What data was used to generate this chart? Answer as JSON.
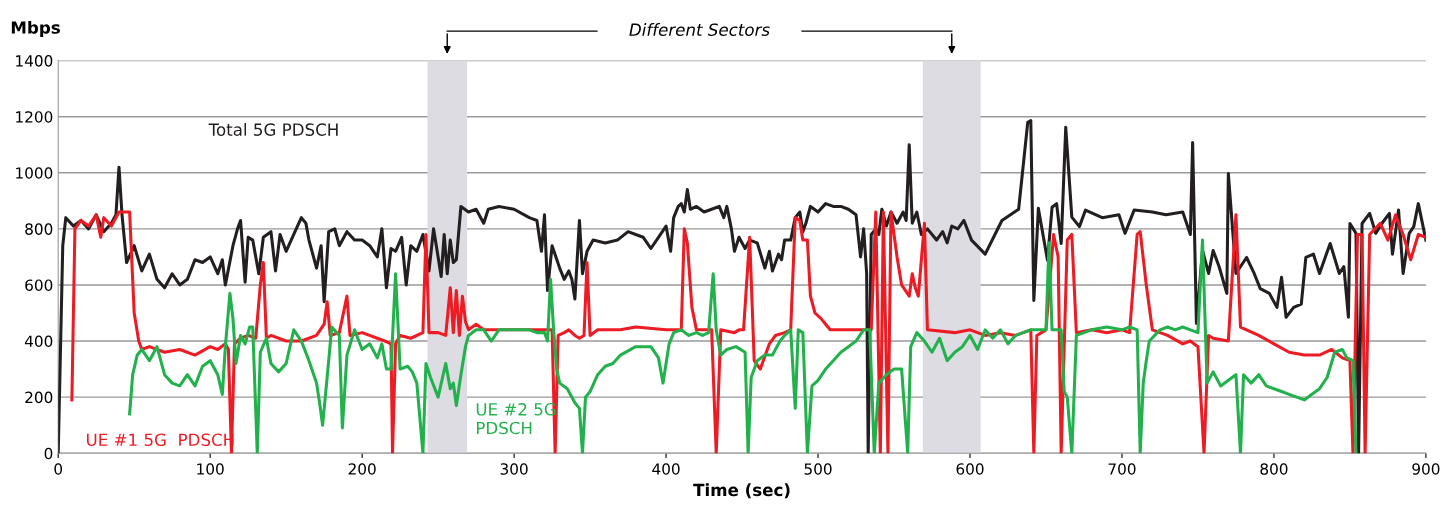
{
  "chart_data": {
    "type": "line",
    "xlabel": "Time (sec)",
    "ylabel": "Mbps",
    "xlim": [
      0,
      900
    ],
    "ylim": [
      0,
      1400
    ],
    "xticks": [
      0,
      100,
      200,
      300,
      400,
      500,
      600,
      700,
      800,
      900
    ],
    "yticks": [
      0,
      200,
      400,
      600,
      800,
      1000,
      1200,
      1400
    ],
    "grid": "y",
    "legend": false,
    "marker": "none",
    "line_style": "solid",
    "annotations": [
      "Different Sectors"
    ],
    "bands": [
      {
        "axis": "x",
        "from": 243,
        "to": 269,
        "color": "#dcdce2"
      },
      {
        "axis": "x",
        "from": 569,
        "to": 607,
        "color": "#dcdce2"
      }
    ],
    "series": [
      {
        "name": "Total 5G PDSCH",
        "color": "#231f20",
        "x": [
          0,
          3,
          5,
          10,
          15,
          20,
          25,
          30,
          35,
          38,
          40,
          42,
          45,
          50,
          55,
          60,
          65,
          70,
          75,
          80,
          85,
          90,
          95,
          100,
          105,
          108,
          110,
          115,
          118,
          120,
          123,
          125,
          128,
          132,
          135,
          140,
          143,
          146,
          150,
          155,
          160,
          163,
          165,
          170,
          173,
          175,
          178,
          182,
          185,
          190,
          195,
          200,
          205,
          210,
          213,
          216,
          219,
          222,
          226,
          229,
          232,
          236,
          240,
          244,
          247,
          250,
          252,
          254,
          256,
          258,
          260,
          262,
          265,
          270,
          275,
          280,
          283,
          290,
          300,
          310,
          315,
          318,
          320,
          322,
          325,
          330,
          333,
          336,
          338,
          340,
          343,
          345,
          348,
          352,
          360,
          368,
          375,
          380,
          385,
          390,
          395,
          400,
          403,
          405,
          408,
          410,
          412,
          414,
          416,
          420,
          425,
          430,
          435,
          438,
          440,
          443,
          445,
          448,
          452,
          455,
          460,
          465,
          468,
          470,
          472,
          474,
          476,
          478,
          482,
          485,
          488,
          490,
          492,
          495,
          500,
          505,
          510,
          515,
          520,
          525,
          528,
          530,
          532,
          533,
          535,
          538,
          540,
          542,
          545,
          548,
          552,
          556,
          558,
          560,
          562,
          565,
          568,
          572,
          578,
          582,
          585,
          588,
          592,
          596,
          601,
          610,
          621,
          632,
          638,
          640,
          642,
          645,
          651,
          654,
          657,
          660,
          663,
          667,
          672,
          676,
          687,
          698,
          702,
          708,
          720,
          729,
          740,
          745,
          746.5,
          749,
          753,
          757,
          760,
          764,
          769,
          770,
          775,
          782,
          787,
          791,
          797,
          802,
          805,
          808,
          813,
          818,
          821,
          826,
          830,
          837,
          843,
          846,
          849,
          850,
          854,
          855.7,
          858,
          863,
          867,
          871,
          876,
          878,
          882,
          885,
          889,
          892,
          895,
          900
        ],
        "values": [
          0,
          740,
          840,
          810,
          830,
          800,
          850,
          790,
          820,
          850,
          1020,
          850,
          680,
          740,
          650,
          710,
          620,
          590,
          640,
          600,
          620,
          690,
          680,
          700,
          640,
          690,
          600,
          740,
          800,
          830,
          610,
          770,
          760,
          640,
          770,
          790,
          650,
          780,
          720,
          780,
          840,
          820,
          760,
          660,
          740,
          540,
          790,
          800,
          740,
          790,
          760,
          760,
          740,
          700,
          800,
          590,
          730,
          720,
          770,
          600,
          740,
          720,
          780,
          650,
          800,
          700,
          630,
          780,
          640,
          760,
          680,
          690,
          880,
          860,
          870,
          820,
          870,
          880,
          870,
          840,
          830,
          720,
          850,
          580,
          740,
          660,
          620,
          650,
          620,
          550,
          830,
          640,
          720,
          760,
          750,
          760,
          790,
          780,
          770,
          730,
          770,
          810,
          720,
          840,
          880,
          890,
          860,
          940,
          870,
          880,
          860,
          870,
          880,
          840,
          880,
          800,
          720,
          770,
          730,
          760,
          750,
          660,
          720,
          650,
          680,
          710,
          690,
          760,
          760,
          840,
          860,
          790,
          820,
          880,
          860,
          890,
          880,
          880,
          870,
          850,
          700,
          800,
          640,
          0,
          780,
          800,
          780,
          870,
          810,
          860,
          820,
          860,
          830,
          1100,
          820,
          860,
          780,
          800,
          760,
          790,
          750,
          810,
          800,
          830,
          760,
          710,
          830,
          870,
          1180,
          1186,
          545,
          873,
          688,
          877,
          890,
          748,
          1162,
          842,
          808,
          867,
          840,
          850,
          784,
          867,
          860,
          850,
          860,
          780,
          1108,
          463,
          723,
          641,
          723,
          664,
          570,
          997,
          641,
          698,
          641,
          587,
          570,
          520,
          627,
          485,
          520,
          532,
          698,
          710,
          641,
          748,
          641,
          665,
          485,
          819,
          784,
          0,
          819,
          855,
          784,
          819,
          855,
          710,
          867,
          641,
          784,
          808,
          890,
          760
        ]
      },
      {
        "name": "UE #1 5G  PDSCH",
        "color": "#ed1c24",
        "x": [
          9,
          11,
          15,
          20,
          25,
          28,
          30,
          35,
          40,
          45,
          47,
          50,
          53,
          55,
          60,
          70,
          80,
          90,
          100,
          105,
          110,
          112,
          114,
          116,
          120,
          125,
          130,
          133,
          135,
          137,
          140,
          150,
          160,
          165,
          170,
          175,
          177,
          179,
          185,
          190,
          192,
          200,
          210,
          215,
          219,
          220,
          222,
          225,
          232,
          240,
          242,
          244,
          250,
          255,
          258,
          260,
          262,
          264,
          266,
          268,
          270,
          275,
          280,
          300,
          320,
          325,
          327,
          329,
          333,
          336,
          340,
          343,
          346,
          348,
          350,
          355,
          370,
          380,
          400,
          410,
          412,
          414,
          417,
          420,
          430,
          433,
          436,
          445,
          448,
          451,
          455,
          458,
          462,
          468,
          472,
          478,
          482,
          485,
          488,
          490,
          493,
          495,
          498,
          502,
          505,
          508,
          520,
          530,
          535,
          538,
          541,
          543,
          546,
          548,
          552,
          555,
          560,
          562,
          564,
          566,
          570,
          572,
          590,
          600,
          610,
          620,
          630,
          640,
          642,
          644,
          650,
          655,
          658,
          660,
          664,
          667,
          670,
          680,
          690,
          700,
          705,
          710,
          712,
          716,
          720,
          730,
          740,
          745,
          750,
          754,
          757,
          760,
          770,
          775,
          778,
          790,
          800,
          810,
          820,
          830,
          838,
          845,
          850,
          852,
          855,
          858,
          860,
          863,
          870,
          875,
          880,
          885,
          890,
          895,
          900
        ],
        "values": [
          190,
          800,
          830,
          810,
          850,
          770,
          840,
          810,
          860,
          860,
          860,
          500,
          400,
          370,
          380,
          360,
          370,
          350,
          380,
          370,
          390,
          370,
          0,
          390,
          410,
          420,
          410,
          600,
          680,
          410,
          420,
          400,
          400,
          410,
          420,
          460,
          540,
          420,
          430,
          560,
          420,
          430,
          410,
          400,
          390,
          0,
          390,
          420,
          410,
          430,
          780,
          430,
          430,
          420,
          590,
          430,
          580,
          420,
          560,
          470,
          440,
          460,
          440,
          440,
          440,
          440,
          0,
          420,
          430,
          440,
          420,
          410,
          420,
          680,
          420,
          440,
          440,
          450,
          440,
          440,
          800,
          750,
          520,
          440,
          440,
          0,
          440,
          430,
          440,
          440,
          770,
          330,
          300,
          390,
          420,
          430,
          440,
          840,
          830,
          760,
          760,
          560,
          500,
          480,
          460,
          440,
          440,
          440,
          440,
          860,
          0,
          860,
          0,
          860,
          700,
          600,
          560,
          640,
          590,
          560,
          820,
          440,
          430,
          440,
          420,
          430,
          420,
          440,
          0,
          420,
          440,
          780,
          700,
          0,
          760,
          780,
          430,
          440,
          430,
          440,
          430,
          780,
          790,
          600,
          440,
          420,
          390,
          400,
          380,
          0,
          420,
          410,
          400,
          850,
          450,
          420,
          390,
          360,
          350,
          350,
          370,
          340,
          330,
          0,
          780,
          780,
          0,
          780,
          820,
          760,
          850,
          780,
          690,
          780,
          770
        ]
      },
      {
        "name": "UE #2 5G\nPDSCH",
        "color": "#22b14c",
        "x": [
          47,
          49,
          52,
          55,
          60,
          65,
          70,
          75,
          80,
          85,
          90,
          95,
          100,
          105,
          108,
          110,
          113,
          115,
          117,
          120,
          123,
          126,
          128,
          131,
          133,
          137,
          140,
          145,
          150,
          155,
          160,
          165,
          170,
          172,
          174,
          178,
          180,
          185,
          187,
          190,
          195,
          200,
          205,
          210,
          213,
          216,
          219,
          222,
          225,
          230,
          233,
          236,
          240,
          242,
          245,
          250,
          255,
          258,
          260,
          262,
          265,
          268,
          270,
          275,
          280,
          285,
          290,
          300,
          310,
          315,
          320,
          322,
          324,
          326,
          328,
          330,
          335,
          340,
          343,
          345,
          347,
          350,
          355,
          360,
          365,
          370,
          380,
          390,
          395,
          398,
          402,
          405,
          410,
          415,
          420,
          424,
          428,
          431,
          433,
          436,
          440,
          446,
          452,
          454,
          456,
          460,
          465,
          470,
          475,
          478,
          482,
          485,
          487,
          490,
          493,
          496,
          500,
          505,
          510,
          515,
          520,
          525,
          530,
          534,
          537,
          540,
          545,
          550,
          555,
          559,
          561,
          565,
          570,
          575,
          580,
          585,
          590,
          595,
          600,
          605,
          610,
          615,
          620,
          625,
          630,
          635,
          640,
          645,
          650,
          652,
          654,
          660,
          662,
          664,
          667,
          670,
          675,
          680,
          690,
          700,
          705,
          710,
          712,
          714,
          716,
          718,
          725,
          730,
          735,
          740,
          745,
          750,
          753,
          756,
          760,
          765,
          770,
          775,
          778,
          780,
          785,
          790,
          795,
          800,
          805,
          810,
          815,
          820,
          825,
          830,
          835,
          840,
          845,
          848,
          852,
          854
        ],
        "values": [
          140,
          280,
          350,
          370,
          330,
          380,
          280,
          250,
          240,
          280,
          240,
          310,
          330,
          280,
          210,
          380,
          570,
          480,
          320,
          420,
          390,
          450,
          450,
          0,
          360,
          410,
          320,
          290,
          320,
          440,
          400,
          330,
          250,
          180,
          100,
          330,
          450,
          420,
          90,
          350,
          440,
          370,
          390,
          340,
          390,
          300,
          300,
          640,
          300,
          310,
          290,
          250,
          0,
          320,
          270,
          200,
          320,
          230,
          250,
          170,
          280,
          380,
          420,
          440,
          440,
          400,
          440,
          440,
          440,
          430,
          430,
          400,
          620,
          440,
          300,
          250,
          230,
          180,
          160,
          0,
          200,
          220,
          280,
          310,
          320,
          350,
          380,
          380,
          340,
          250,
          390,
          430,
          440,
          420,
          430,
          420,
          430,
          640,
          440,
          350,
          370,
          380,
          360,
          0,
          270,
          330,
          350,
          350,
          400,
          420,
          440,
          160,
          440,
          430,
          0,
          240,
          260,
          300,
          330,
          360,
          380,
          400,
          440,
          440,
          0,
          250,
          280,
          300,
          300,
          0,
          380,
          430,
          400,
          360,
          410,
          330,
          360,
          380,
          420,
          370,
          440,
          410,
          440,
          390,
          420,
          430,
          440,
          440,
          440,
          750,
          440,
          440,
          220,
          200,
          0,
          420,
          430,
          440,
          450,
          440,
          450,
          440,
          0,
          250,
          330,
          400,
          440,
          450,
          440,
          450,
          440,
          430,
          760,
          250,
          290,
          240,
          260,
          280,
          0,
          280,
          250,
          280,
          240,
          230,
          220,
          210,
          200,
          190,
          210,
          230,
          270,
          360,
          370,
          340,
          330,
          0
        ]
      }
    ]
  }
}
